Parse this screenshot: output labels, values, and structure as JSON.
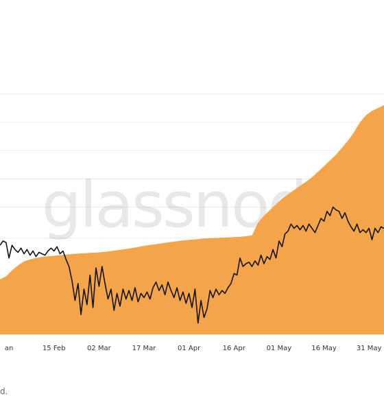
{
  "watermark": "glassnode",
  "footnote": "d.",
  "chart_data": {
    "type": "area",
    "colors": {
      "area": "#f4a54a",
      "line": "#111111",
      "grid": "#ececec"
    },
    "x_tick_labels": [
      "an",
      "15 Feb",
      "02 Mar",
      "17 Mar",
      "01 Apr",
      "16 Apr",
      "01 May",
      "16 May",
      "31 May"
    ],
    "x_tick_days": [
      31,
      46,
      61,
      76,
      91,
      106,
      121,
      136,
      151
    ],
    "xlim_days": [
      28,
      156
    ],
    "ylim": [
      0,
      100
    ],
    "gridlines_y": [
      34,
      45,
      55,
      65,
      75,
      85
    ],
    "series": [
      {
        "kind": "area",
        "x_days": [
          28,
          30,
          32,
          34,
          36,
          38,
          40,
          42,
          44,
          46,
          48,
          50,
          52,
          54,
          56,
          58,
          60,
          62,
          64,
          66,
          68,
          70,
          72,
          74,
          76,
          78,
          80,
          82,
          84,
          86,
          88,
          90,
          92,
          94,
          96,
          98,
          100,
          102,
          104,
          106,
          108,
          110,
          112,
          114,
          116,
          118,
          120,
          122,
          124,
          126,
          128,
          130,
          132,
          134,
          136,
          138,
          140,
          142,
          144,
          146,
          148,
          150,
          152,
          154,
          156
        ],
        "values": [
          19.5,
          20.5,
          22.6,
          24.4,
          25.8,
          26.5,
          27.0,
          27.4,
          27.6,
          27.8,
          28.0,
          28.2,
          28.4,
          28.6,
          28.7,
          28.8,
          28.9,
          29.1,
          29.3,
          29.6,
          29.9,
          30.2,
          30.5,
          30.9,
          31.3,
          31.6,
          31.9,
          32.2,
          32.5,
          32.8,
          33.1,
          33.3,
          33.5,
          33.7,
          33.9,
          34.0,
          34.1,
          34.2,
          34.3,
          34.4,
          34.5,
          34.7,
          35.0,
          39.5,
          42.0,
          44.0,
          46.0,
          48.0,
          49.5,
          51.0,
          52.5,
          54.0,
          55.5,
          57.5,
          59.5,
          61.5,
          63.5,
          66.0,
          68.5,
          71.5,
          75.0,
          77.5,
          79.0,
          80.0,
          81.0
        ]
      },
      {
        "kind": "line",
        "x_days": [
          28,
          29,
          30,
          31,
          32,
          33,
          34,
          35,
          36,
          37,
          38,
          39,
          40,
          41,
          42,
          43,
          44,
          45,
          46,
          47,
          48,
          49,
          50,
          51,
          52,
          53,
          54,
          55,
          56,
          57,
          58,
          59,
          60,
          61,
          62,
          63,
          64,
          65,
          66,
          67,
          68,
          69,
          70,
          71,
          72,
          73,
          74,
          75,
          76,
          77,
          78,
          79,
          80,
          81,
          82,
          83,
          84,
          85,
          86,
          87,
          88,
          89,
          90,
          91,
          92,
          93,
          94,
          95,
          96,
          97,
          98,
          99,
          100,
          101,
          102,
          103,
          104,
          105,
          106,
          107,
          108,
          109,
          110,
          111,
          112,
          113,
          114,
          115,
          116,
          117,
          118,
          119,
          120,
          121,
          122,
          123,
          124,
          125,
          126,
          127,
          128,
          129,
          130,
          131,
          132,
          133,
          134,
          135,
          136,
          137,
          138,
          139,
          140,
          141,
          142,
          143,
          144,
          145,
          146,
          147,
          148,
          149,
          150,
          151,
          152,
          153,
          154,
          155,
          156
        ],
        "values": [
          31.5,
          33.0,
          32.5,
          27.0,
          31.5,
          30.0,
          29.0,
          30.5,
          28.5,
          30.0,
          28.0,
          29.5,
          27.5,
          29.0,
          28.5,
          28.0,
          29.5,
          30.5,
          29.5,
          31.0,
          28.5,
          29.5,
          26.5,
          24.0,
          19.0,
          12.0,
          18.0,
          7.0,
          16.0,
          10.5,
          21.0,
          9.5,
          23.5,
          17.0,
          24.0,
          18.0,
          12.5,
          16.0,
          8.5,
          14.5,
          10.0,
          16.0,
          12.5,
          15.5,
          12.0,
          16.5,
          11.5,
          14.5,
          13.0,
          15.0,
          12.5,
          16.5,
          18.5,
          15.5,
          17.5,
          14.0,
          18.5,
          15.5,
          13.0,
          16.5,
          12.0,
          15.0,
          11.0,
          14.5,
          9.5,
          16.0,
          4.0,
          12.0,
          6.0,
          9.0,
          15.5,
          13.0,
          16.0,
          14.0,
          15.5,
          14.5,
          16.5,
          18.0,
          21.5,
          21.0,
          27.0,
          24.0,
          25.0,
          25.5,
          24.0,
          26.0,
          24.5,
          28.0,
          25.0,
          27.5,
          26.5,
          30.0,
          27.0,
          33.0,
          31.0,
          35.5,
          36.5,
          39.0,
          37.5,
          38.5,
          37.0,
          38.5,
          36.5,
          39.0,
          37.5,
          36.0,
          38.5,
          41.0,
          40.0,
          43.5,
          42.0,
          45.0,
          44.0,
          43.5,
          41.0,
          43.0,
          40.0,
          38.0,
          36.5,
          39.0,
          36.0,
          37.0,
          36.0,
          37.5,
          33.5,
          37.5,
          36.0,
          38.0,
          37.5
        ]
      }
    ]
  }
}
